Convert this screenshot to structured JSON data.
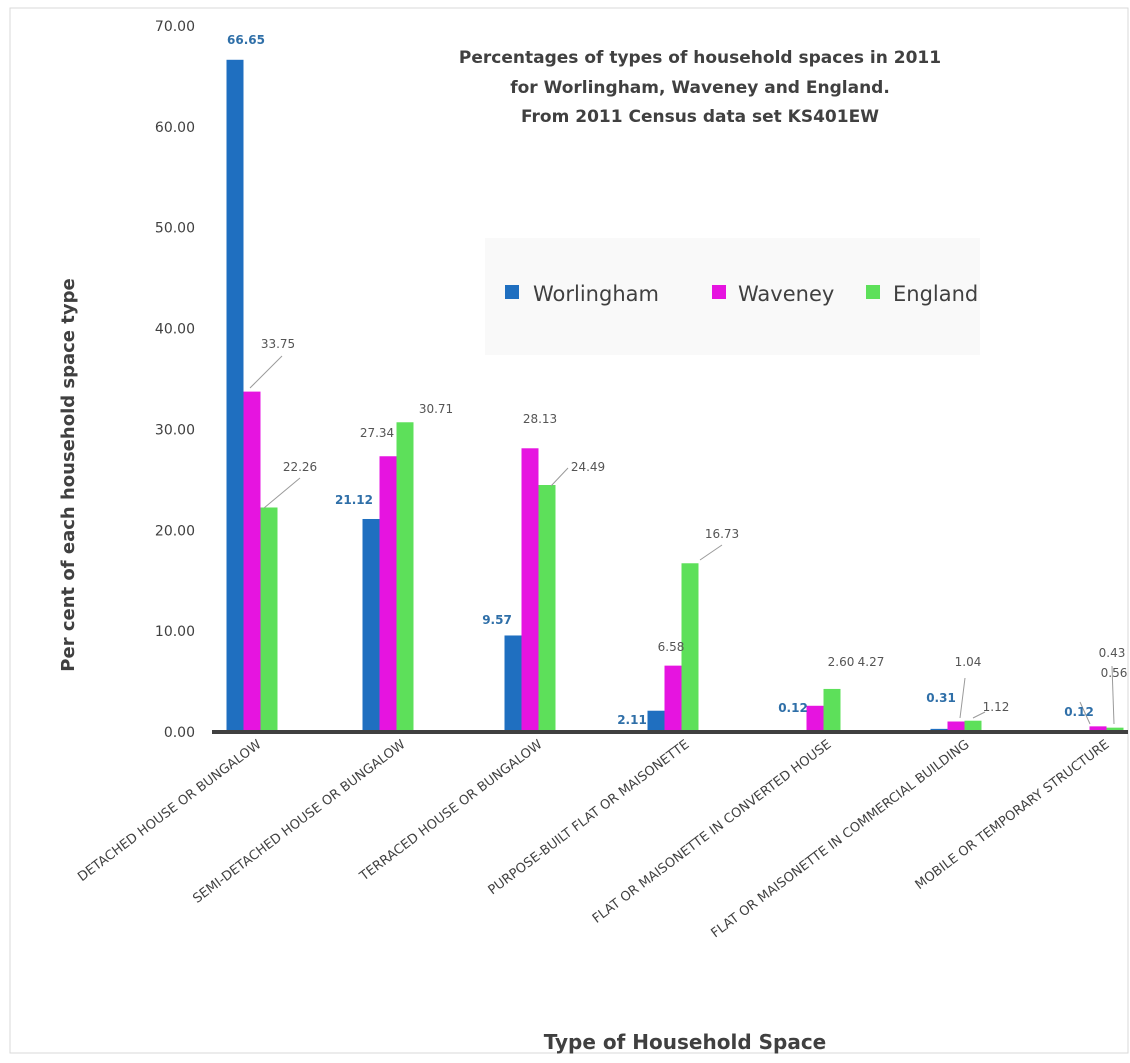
{
  "chart_data": {
    "type": "bar",
    "title_lines": [
      "Percentages of types of household spaces in 2011",
      "for Worlingham,  Waveney and England.",
      "From 2011 Census data set KS401EW"
    ],
    "xlabel": "Type of Household Space",
    "ylabel": "Per cent of each household space type",
    "ylim": [
      0,
      70
    ],
    "yticks": [
      "0.00",
      "10.00",
      "20.00",
      "30.00",
      "40.00",
      "50.00",
      "60.00",
      "70.00"
    ],
    "grid": false,
    "legend_position": "center-right",
    "categories": [
      "DETACHED HOUSE OR BUNGALOW",
      "SEMI-DETACHED HOUSE OR BUNGALOW",
      "TERRACED HOUSE OR BUNGALOW",
      "PURPOSE-BUILT FLAT OR MAISONETTE",
      "FLAT OR MAISONETTE IN CONVERTED HOUSE",
      "FLAT OR MAISONETTE IN COMMERCIAL BUILDING",
      "MOBILE OR TEMPORARY STRUCTURE"
    ],
    "series": [
      {
        "name": "Worlingham",
        "color": "#1f6fc0",
        "values": [
          66.65,
          21.12,
          9.57,
          2.11,
          0.12,
          0.31,
          0.12
        ],
        "labels": [
          "66.65",
          "21.12",
          "9.57",
          "2.11",
          "0.12",
          "0.31",
          "0.12"
        ]
      },
      {
        "name": "Waveney",
        "color": "#e614e0",
        "values": [
          33.75,
          27.34,
          28.13,
          6.58,
          2.6,
          1.04,
          0.56
        ],
        "labels": [
          "33.75",
          "27.34",
          "28.13",
          "6.58",
          "2.60",
          "1.04",
          "0.56"
        ]
      },
      {
        "name": "England",
        "color": "#5de05a",
        "values": [
          22.26,
          30.71,
          24.49,
          16.73,
          4.27,
          1.12,
          0.43
        ],
        "labels": [
          "22.26",
          "30.71",
          "24.49",
          "16.73",
          "4.27",
          "1.12",
          "0.43"
        ]
      }
    ]
  }
}
